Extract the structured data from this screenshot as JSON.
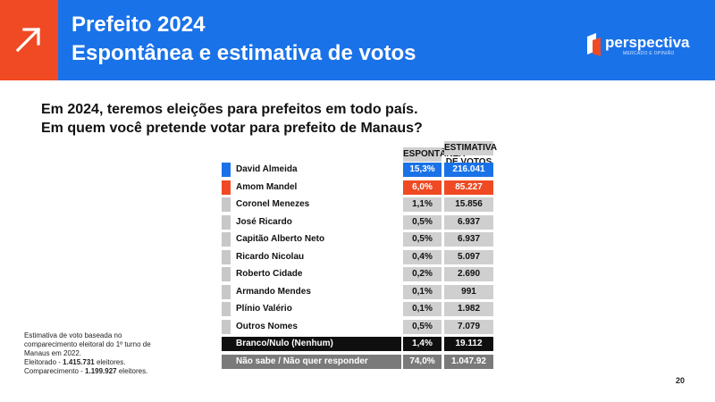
{
  "header": {
    "title_line1": "Prefeito 2024",
    "title_line2": "Espontânea e estimativa de votos",
    "accent_color": "#ef4a23",
    "brand_color": "#1a72e8",
    "icon": "arrow-up-right-icon"
  },
  "logo": {
    "name": "perspectiva",
    "tagline": "MERCADO E OPINIÃO",
    "icon": "perspectiva-logo-icon"
  },
  "question": {
    "line1": "Em 2024, teremos eleições para prefeitos em todo país.",
    "line2": "Em quem você pretende votar para prefeito de Manaus?"
  },
  "table": {
    "col_spontaneous": "ESPONTÂNEA",
    "col_estimate_line1": "ESTIMATIVA",
    "col_estimate_line2": "DE VOTOS",
    "rows": [
      {
        "name": "David Almeida",
        "spontaneous": "15,3%",
        "estimate": "216.041",
        "style": "blue"
      },
      {
        "name": "Amom Mandel",
        "spontaneous": "6,0%",
        "estimate": "85.227",
        "style": "orange"
      },
      {
        "name": "Coronel Menezes",
        "spontaneous": "1,1%",
        "estimate": "15.856",
        "style": "plain"
      },
      {
        "name": "José Ricardo",
        "spontaneous": "0,5%",
        "estimate": "6.937",
        "style": "plain"
      },
      {
        "name": "Capitão Alberto Neto",
        "spontaneous": "0,5%",
        "estimate": "6.937",
        "style": "plain"
      },
      {
        "name": "Ricardo Nicolau",
        "spontaneous": "0,4%",
        "estimate": "5.097",
        "style": "plain"
      },
      {
        "name": "Roberto Cidade",
        "spontaneous": "0,2%",
        "estimate": "2.690",
        "style": "plain"
      },
      {
        "name": "Armando Mendes",
        "spontaneous": "0,1%",
        "estimate": "991",
        "style": "plain"
      },
      {
        "name": "Plínio Valério",
        "spontaneous": "0,1%",
        "estimate": "1.982",
        "style": "plain"
      },
      {
        "name": "Outros Nomes",
        "spontaneous": "0,5%",
        "estimate": "7.079",
        "style": "plain"
      },
      {
        "name": "Branco/Nulo (Nenhum)",
        "spontaneous": "1,4%",
        "estimate": "19.112",
        "style": "black"
      },
      {
        "name": "Não sabe / Não quer responder",
        "spontaneous": "74,0%",
        "estimate": "1.047.92",
        "style": "gray"
      }
    ]
  },
  "note": {
    "line1": "Estimativa de voto baseada no",
    "line2": "comparecimento eleitoral do 1º turno de",
    "line3": "Manaus em 2022.",
    "line4_label": "Eleitorado - ",
    "line4_value": "1.415.731",
    "line4_suffix": " eleitores.",
    "line5_label": "Comparecimento - ",
    "line5_value": "1.199.927",
    "line5_suffix": " eleitores."
  },
  "page_number": "20"
}
